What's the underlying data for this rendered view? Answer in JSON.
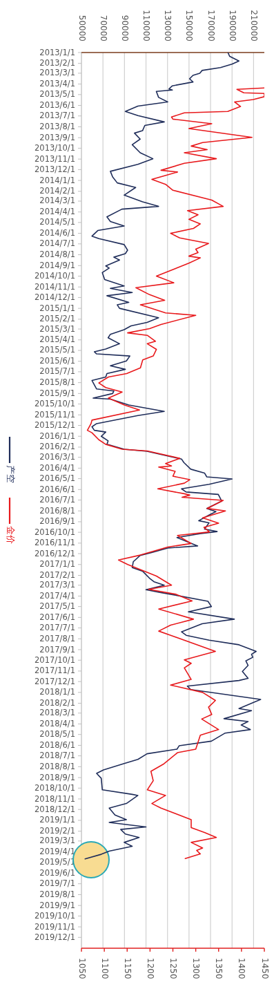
{
  "chart_data": {
    "type": "line",
    "orientation": "horizontal",
    "legend": "left",
    "grid": "x2",
    "line_style": "solid",
    "ylim": [
      "2020-01-01",
      "2013-01-01"
    ],
    "yticks": [
      {
        "value": "2013-01-01",
        "label": "2013/1/1"
      },
      {
        "value": "2013-02-01",
        "label": "2013/2/1"
      },
      {
        "value": "2013-03-01",
        "label": "2013/3/1"
      },
      {
        "value": "2013-04-01",
        "label": "2013/4/1"
      },
      {
        "value": "2013-05-01",
        "label": "2013/5/1"
      },
      {
        "value": "2013-06-01",
        "label": "2013/6/1"
      },
      {
        "value": "2013-07-01",
        "label": "2013/7/1"
      },
      {
        "value": "2013-08-01",
        "label": "2013/8/1"
      },
      {
        "value": "2013-09-01",
        "label": "2013/9/1"
      },
      {
        "value": "2013-10-01",
        "label": "2013/10/1"
      },
      {
        "value": "2013-11-01",
        "label": "2013/11/1"
      },
      {
        "value": "2013-12-01",
        "label": "2013/12/1"
      },
      {
        "value": "2014-01-01",
        "label": "2014/1/1"
      },
      {
        "value": "2014-02-01",
        "label": "2014/2/1"
      },
      {
        "value": "2014-03-01",
        "label": "2014/3/1"
      },
      {
        "value": "2014-04-01",
        "label": "2014/4/1"
      },
      {
        "value": "2014-05-01",
        "label": "2014/5/1"
      },
      {
        "value": "2014-06-01",
        "label": "2014/6/1"
      },
      {
        "value": "2014-07-01",
        "label": "2014/7/1"
      },
      {
        "value": "2014-08-01",
        "label": "2014/8/1"
      },
      {
        "value": "2014-09-01",
        "label": "2014/9/1"
      },
      {
        "value": "2014-10-01",
        "label": "2014/10/1"
      },
      {
        "value": "2014-11-01",
        "label": "2014/11/1"
      },
      {
        "value": "2014-12-01",
        "label": "2014/12/1"
      },
      {
        "value": "2015-01-01",
        "label": "2015/1/1"
      },
      {
        "value": "2015-02-01",
        "label": "2015/2/1"
      },
      {
        "value": "2015-03-01",
        "label": "2015/3/1"
      },
      {
        "value": "2015-04-01",
        "label": "2015/4/1"
      },
      {
        "value": "2015-05-01",
        "label": "2015/5/1"
      },
      {
        "value": "2015-06-01",
        "label": "2015/6/1"
      },
      {
        "value": "2015-07-01",
        "label": "2015/7/1"
      },
      {
        "value": "2015-08-01",
        "label": "2015/8/1"
      },
      {
        "value": "2015-09-01",
        "label": "2015/9/1"
      },
      {
        "value": "2015-10-01",
        "label": "2015/10/1"
      },
      {
        "value": "2015-11-01",
        "label": "2015/11/1"
      },
      {
        "value": "2015-12-01",
        "label": "2015/12/1"
      },
      {
        "value": "2016-01-01",
        "label": "2016/1/1"
      },
      {
        "value": "2016-02-01",
        "label": "2016/2/1"
      },
      {
        "value": "2016-03-01",
        "label": "2016/3/1"
      },
      {
        "value": "2016-04-01",
        "label": "2016/4/1"
      },
      {
        "value": "2016-05-01",
        "label": "2016/5/1"
      },
      {
        "value": "2016-06-01",
        "label": "2016/6/1"
      },
      {
        "value": "2016-07-01",
        "label": "2016/7/1"
      },
      {
        "value": "2016-08-01",
        "label": "2016/8/1"
      },
      {
        "value": "2016-09-01",
        "label": "2016/9/1"
      },
      {
        "value": "2016-10-01",
        "label": "2016/10/1"
      },
      {
        "value": "2016-11-01",
        "label": "2016/11/1"
      },
      {
        "value": "2016-12-01",
        "label": "2016/12/1"
      },
      {
        "value": "2017-01-01",
        "label": "2017/1/1"
      },
      {
        "value": "2017-02-01",
        "label": "2017/2/1"
      },
      {
        "value": "2017-03-01",
        "label": "2017/3/1"
      },
      {
        "value": "2017-04-01",
        "label": "2017/4/1"
      },
      {
        "value": "2017-05-01",
        "label": "2017/5/1"
      },
      {
        "value": "2017-06-01",
        "label": "2017/6/1"
      },
      {
        "value": "2017-07-01",
        "label": "2017/7/1"
      },
      {
        "value": "2017-08-01",
        "label": "2017/8/1"
      },
      {
        "value": "2017-09-01",
        "label": "2017/9/1"
      },
      {
        "value": "2017-10-01",
        "label": "2017/10/1"
      },
      {
        "value": "2017-11-01",
        "label": "2017/11/1"
      },
      {
        "value": "2017-12-01",
        "label": "2017/12/1"
      },
      {
        "value": "2018-01-01",
        "label": "2018/1/1"
      },
      {
        "value": "2018-02-01",
        "label": "2018/2/1"
      },
      {
        "value": "2018-03-01",
        "label": "2018/3/1"
      },
      {
        "value": "2018-04-01",
        "label": "2018/4/1"
      },
      {
        "value": "2018-05-01",
        "label": "2018/5/1"
      },
      {
        "value": "2018-06-01",
        "label": "2018/6/1"
      },
      {
        "value": "2018-07-01",
        "label": "2018/7/1"
      },
      {
        "value": "2018-08-01",
        "label": "2018/8/1"
      },
      {
        "value": "2018-09-01",
        "label": "2018/9/1"
      },
      {
        "value": "2018-10-01",
        "label": "2018/10/1"
      },
      {
        "value": "2018-11-01",
        "label": "2018/11/1"
      },
      {
        "value": "2018-12-01",
        "label": "2018/12/1"
      },
      {
        "value": "2019-01-01",
        "label": "2019/1/1"
      },
      {
        "value": "2019-02-01",
        "label": "2019/2/1"
      },
      {
        "value": "2019-03-01",
        "label": "2019/3/1"
      },
      {
        "value": "2019-04-01",
        "label": "2019/4/1"
      },
      {
        "value": "2019-05-01",
        "label": "2019/5/1"
      },
      {
        "value": "2019-06-01",
        "label": "2019/6/1"
      },
      {
        "value": "2019-07-01",
        "label": "2019/7/1"
      },
      {
        "value": "2019-08-01",
        "label": "2019/8/1"
      },
      {
        "value": "2019-09-01",
        "label": "2019/9/1"
      },
      {
        "value": "2019-10-01",
        "label": "2019/10/1"
      },
      {
        "value": "2019-11-01",
        "label": "2019/11/1"
      },
      {
        "value": "2019-12-01",
        "label": "2019/12/1"
      }
    ],
    "xlim": [
      1050,
      1450
    ],
    "xticks": [
      1050,
      1100,
      1150,
      1200,
      1250,
      1300,
      1350,
      1400,
      1450
    ],
    "x2lim": [
      50000,
      220000
    ],
    "x2ticks": [
      50000,
      70000,
      90000,
      110000,
      130000,
      150000,
      170000,
      190000,
      210000
    ],
    "series": [
      {
        "name": "产空",
        "color": "#1f2d5a",
        "axis": "x2",
        "x": [
          "2013-01-02",
          "2013-01-12",
          "2013-01-25",
          "2013-02-03",
          "2013-02-13",
          "2013-02-21",
          "2013-03-01",
          "2013-03-07",
          "2013-03-17",
          "2013-03-26",
          "2013-04-06",
          "2013-04-15",
          "2013-04-18",
          "2013-04-22",
          "2013-05-09",
          "2013-05-22",
          "2013-06-03",
          "2013-06-18",
          "2013-06-30",
          "2013-07-18",
          "2013-07-28",
          "2013-08-12",
          "2013-08-19",
          "2013-09-05",
          "2013-09-21",
          "2013-10-14",
          "2013-10-31",
          "2013-11-16",
          "2013-12-06",
          "2013-12-22",
          "2014-01-08",
          "2014-01-21",
          "2014-02-12",
          "2014-03-03",
          "2014-03-16",
          "2014-03-24",
          "2014-04-15",
          "2014-04-28",
          "2014-05-11",
          "2014-05-24",
          "2014-06-09",
          "2014-06-16",
          "2014-07-03",
          "2014-07-19",
          "2014-07-29",
          "2014-08-08",
          "2014-08-16",
          "2014-09-02",
          "2014-09-08",
          "2014-09-21",
          "2014-10-11",
          "2014-10-29",
          "2014-11-05",
          "2014-11-17",
          "2014-11-26",
          "2014-12-15",
          "2014-12-22",
          "2015-01-01",
          "2015-01-28",
          "2015-02-10",
          "2015-02-20",
          "2015-03-03",
          "2015-03-16",
          "2015-03-26",
          "2015-04-12",
          "2015-04-27",
          "2015-05-05",
          "2015-05-11",
          "2015-05-17",
          "2015-05-31",
          "2015-06-14",
          "2015-06-24",
          "2015-07-06",
          "2015-07-16",
          "2015-07-26",
          "2015-08-19",
          "2015-08-25",
          "2015-09-01",
          "2015-09-14",
          "2015-09-17",
          "2015-10-04",
          "2015-10-22",
          "2015-11-03",
          "2015-11-26",
          "2015-12-05",
          "2015-12-15",
          "2015-12-20",
          "2016-01-01",
          "2016-01-14",
          "2016-01-24",
          "2016-02-07",
          "2016-02-13",
          "2016-03-06",
          "2016-03-16",
          "2016-04-04",
          "2016-04-15",
          "2016-04-26",
          "2016-05-02",
          "2016-05-17",
          "2016-05-30",
          "2016-06-08",
          "2016-06-15",
          "2016-07-04",
          "2016-07-25",
          "2016-08-03",
          "2016-08-13",
          "2016-08-29",
          "2016-09-04",
          "2016-09-22",
          "2016-09-29",
          "2016-10-05",
          "2016-10-16",
          "2016-11-09",
          "2016-11-15",
          "2016-11-28",
          "2016-12-06",
          "2016-12-24",
          "2017-01-10",
          "2017-01-20",
          "2017-02-09",
          "2017-02-19",
          "2017-03-01",
          "2017-03-14",
          "2017-03-22",
          "2017-03-29",
          "2017-04-16",
          "2017-05-01",
          "2017-05-16",
          "2017-06-06",
          "2017-06-19",
          "2017-07-12",
          "2017-07-22",
          "2017-08-05",
          "2017-08-18",
          "2017-09-06",
          "2017-09-14",
          "2017-09-23",
          "2017-10-03",
          "2017-10-16",
          "2017-11-02",
          "2017-11-22",
          "2017-11-28",
          "2017-12-14",
          "2017-12-24",
          "2018-01-21",
          "2018-02-16",
          "2018-02-22",
          "2018-03-17",
          "2018-03-25",
          "2018-04-04",
          "2018-04-17",
          "2018-04-27",
          "2018-05-20",
          "2018-06-02",
          "2018-06-12",
          "2018-06-25",
          "2018-07-11",
          "2018-07-23",
          "2018-08-10",
          "2018-08-20",
          "2018-09-03",
          "2018-10-06",
          "2018-10-19",
          "2018-10-22",
          "2018-11-14",
          "2018-11-27",
          "2018-12-17",
          "2018-12-30",
          "2019-01-07",
          "2019-01-20",
          "2019-01-27",
          "2019-02-09",
          "2019-02-19",
          "2019-03-05",
          "2019-03-16",
          "2019-03-30",
          "2019-04-08",
          "2019-04-21"
        ],
        "values": [
          186300,
          187800,
          196400,
          190000,
          179300,
          162200,
          160000,
          153700,
          150500,
          153700,
          134500,
          131300,
          134500,
          119600,
          121700,
          130200,
          102500,
          90800,
          102500,
          127000,
          108900,
          106800,
          99300,
          104600,
          97200,
          104600,
          116400,
          102500,
          76900,
          79000,
          83300,
          100400,
          89700,
          106800,
          121700,
          87600,
          73700,
          76900,
          89700,
          65200,
          59800,
          66200,
          89700,
          92900,
          90800,
          80100,
          85400,
          72600,
          75800,
          69400,
          71600,
          89700,
          76900,
          97200,
          73700,
          94000,
          83300,
          85400,
          121700,
          111000,
          96100,
          89700,
          76900,
          74800,
          85400,
          72600,
          62000,
          64100,
          95000,
          91800,
          76900,
          90800,
          73700,
          72600,
          59800,
          64100,
          80100,
          79000,
          60900,
          76900,
          94000,
          127000,
          102500,
          64100,
          59800,
          62000,
          72600,
          68400,
          74800,
          73700,
          89700,
          111000,
          143000,
          145200,
          151600,
          164400,
          166500,
          190000,
          168600,
          143000,
          147300,
          177200,
          180400,
          166500,
          175000,
          168600,
          159000,
          168600,
          164400,
          176100,
          160100,
          138800,
          158000,
          130200,
          115300,
          104600,
          98200,
          97200,
          106800,
          113200,
          117400,
          127000,
          110000,
          123800,
          136600,
          167600,
          170800,
          149400,
          192100,
          162200,
          143000,
          147300,
          168600,
          196400,
          212400,
          208100,
          209200,
          202800,
          204900,
          199600,
          204900,
          196400,
          148400,
          151600,
          216600,
          196400,
          208100,
          182500,
          204900,
          198500,
          207000,
          183600,
          170800,
          140900,
          138800,
          111000,
          102500,
          89700,
          70500,
          64100,
          68400,
          69400,
          97200,
          102500,
          91800,
          75800,
          81200,
          91800,
          75800,
          110000,
          86500,
          90800,
          103600,
          89700,
          97200,
          75800,
          68400,
          53400
        ]
      },
      {
        "name": "金价",
        "color": "#e8191c",
        "x": [
          "2013-04-12",
          "2013-04-16",
          "2013-04-26",
          "2013-04-28",
          "2013-05-07",
          "2013-05-15",
          "2013-05-22",
          "2013-06-04",
          "2013-06-18",
          "2013-06-22",
          "2013-07-04",
          "2013-07-10",
          "2013-07-23",
          "2013-08-06",
          "2013-08-31",
          "2013-09-15",
          "2013-09-25",
          "2013-10-05",
          "2013-10-14",
          "2013-10-31",
          "2013-11-13",
          "2013-12-03",
          "2013-12-08",
          "2013-12-29",
          "2014-01-12",
          "2014-01-29",
          "2014-02-26",
          "2014-03-16",
          "2014-03-28",
          "2014-04-09",
          "2014-04-22",
          "2014-05-05",
          "2014-05-18",
          "2014-06-01",
          "2014-06-14",
          "2014-06-30",
          "2014-07-16",
          "2014-07-26",
          "2014-08-05",
          "2014-08-10",
          "2014-08-25",
          "2014-10-01",
          "2014-10-20",
          "2014-11-03",
          "2014-11-23",
          "2014-12-09",
          "2014-12-22",
          "2015-01-14",
          "2015-01-21",
          "2015-02-16",
          "2015-02-28",
          "2015-03-12",
          "2015-03-19",
          "2015-04-05",
          "2015-04-12",
          "2015-04-28",
          "2015-05-17",
          "2015-05-28",
          "2015-06-20",
          "2015-07-06",
          "2015-07-16",
          "2015-08-02",
          "2015-08-15",
          "2015-08-28",
          "2015-09-14",
          "2015-10-04",
          "2015-10-18",
          "2015-11-16",
          "2015-11-26",
          "2015-12-15",
          "2015-12-22",
          "2016-01-11",
          "2016-01-24",
          "2016-02-07",
          "2016-02-12",
          "2016-03-04",
          "2016-03-19",
          "2016-03-26",
          "2016-03-29",
          "2016-04-10",
          "2016-04-24",
          "2016-05-04",
          "2016-05-14",
          "2016-05-30",
          "2016-06-13",
          "2016-06-17",
          "2016-06-23",
          "2016-07-02",
          "2016-07-25",
          "2016-08-01",
          "2016-08-21",
          "2016-09-05",
          "2016-09-17",
          "2016-09-30",
          "2016-10-10",
          "2016-11-02",
          "2016-11-12",
          "2016-12-05",
          "2016-12-19",
          "2017-01-01",
          "2017-02-03",
          "2017-03-01",
          "2017-03-13",
          "2017-03-27",
          "2017-04-15",
          "2017-05-08",
          "2017-06-06",
          "2017-06-23",
          "2017-07-10",
          "2017-07-22",
          "2017-09-06",
          "2017-09-30",
          "2017-10-10",
          "2017-10-23",
          "2017-11-25",
          "2017-12-11",
          "2018-01-01",
          "2018-01-24",
          "2018-02-12",
          "2018-03-05",
          "2018-03-18",
          "2018-04-17",
          "2018-05-03",
          "2018-06-12",
          "2018-06-22",
          "2018-07-25",
          "2018-08-14",
          "2018-09-10",
          "2018-10-06",
          "2018-10-22",
          "2018-11-14",
          "2018-11-27",
          "2018-12-30",
          "2019-01-22",
          "2019-02-05",
          "2019-02-19",
          "2019-03-05",
          "2019-03-21",
          "2019-03-28",
          "2019-04-07",
          "2019-04-20"
        ],
        "values": [
          1450,
          1390,
          1405,
          1450,
          1450,
          1426,
          1385,
          1398,
          1370,
          1275,
          1247,
          1250,
          1335,
          1285,
          1423,
          1315,
          1290,
          1325,
          1275,
          1345,
          1275,
          1224,
          1260,
          1204,
          1234,
          1250,
          1335,
          1360,
          1282,
          1305,
          1285,
          1310,
          1295,
          1245,
          1265,
          1328,
          1300,
          1305,
          1285,
          1310,
          1285,
          1214,
          1252,
          1169,
          1199,
          1232,
          1179,
          1234,
          1300,
          1224,
          1199,
          1151,
          1194,
          1212,
          1194,
          1214,
          1207,
          1184,
          1179,
          1149,
          1109,
          1088,
          1103,
          1139,
          1109,
          1144,
          1177,
          1073,
          1071,
          1063,
          1073,
          1088,
          1103,
          1139,
          1194,
          1265,
          1234,
          1247,
          1219,
          1255,
          1250,
          1287,
          1275,
          1217,
          1275,
          1287,
          1270,
          1360,
          1325,
          1365,
          1315,
          1350,
          1318,
          1330,
          1260,
          1290,
          1239,
          1179,
          1131,
          1151,
          1214,
          1247,
          1197,
          1257,
          1292,
          1219,
          1295,
          1245,
          1219,
          1245,
          1343,
          1275,
          1290,
          1275,
          1290,
          1245,
          1315,
          1343,
          1328,
          1335,
          1313,
          1350,
          1310,
          1300,
          1260,
          1229,
          1202,
          1207,
          1194,
          1234,
          1204,
          1224,
          1290,
          1290,
          1320,
          1345,
          1290,
          1315,
          1302,
          1310,
          1277
        ]
      }
    ]
  }
}
